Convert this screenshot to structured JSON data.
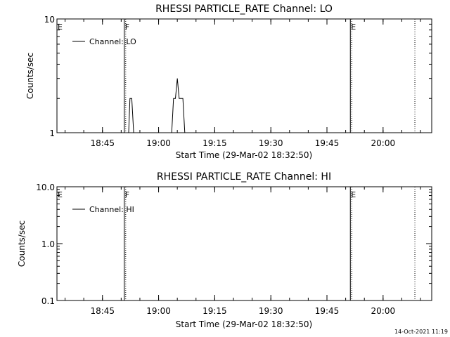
{
  "footer": {
    "timestamp": "14-Oct-2021 11:19"
  },
  "chart_data": [
    {
      "type": "line",
      "title": "RHESSI PARTICLE_RATE Channel: LO",
      "xlabel": "Start Time (29-Mar-02 18:32:50)",
      "ylabel": "Counts/sec",
      "yscale": "log",
      "ylim": [
        1,
        10
      ],
      "ytick_labels": [
        "1",
        "10"
      ],
      "xlim": [
        "18:32:50",
        "20:13:00"
      ],
      "xtick_labels": [
        "18:45",
        "19:00",
        "19:15",
        "19:30",
        "19:45",
        "20:00"
      ],
      "legend": {
        "placement": "top-left",
        "entries": [
          "Channel: LO"
        ]
      },
      "markers": [
        {
          "label": "E",
          "time": "18:32:50",
          "style": "none"
        },
        {
          "label": "F",
          "time": "18:50:50",
          "style": "solid+dotted"
        },
        {
          "label": "E",
          "time": "19:51:15",
          "style": "solid+dotted"
        },
        {
          "label": "",
          "time": "20:08:30",
          "style": "dotted"
        }
      ],
      "series": [
        {
          "name": "Channel: LO",
          "x": [
            "18:51:00",
            "18:52:00",
            "18:52:20",
            "18:52:50",
            "18:53:20",
            "18:53:30",
            "19:03:30",
            "19:04:00",
            "19:04:30",
            "19:05:00",
            "19:05:30",
            "19:06:00",
            "19:06:30",
            "19:07:00",
            "19:07:30"
          ],
          "y": [
            1,
            1,
            2,
            2,
            1,
            1,
            1,
            2,
            2,
            3,
            2,
            2,
            2,
            1,
            1
          ]
        }
      ]
    },
    {
      "type": "line",
      "title": "RHESSI PARTICLE_RATE Channel: HI",
      "xlabel": "Start Time (29-Mar-02 18:32:50)",
      "ylabel": "Counts/sec",
      "yscale": "log",
      "ylim": [
        0.1,
        10
      ],
      "ytick_labels": [
        "0.1",
        "1.0",
        "10.0"
      ],
      "xlim": [
        "18:32:50",
        "20:13:00"
      ],
      "xtick_labels": [
        "18:45",
        "19:00",
        "19:15",
        "19:30",
        "19:45",
        "20:00"
      ],
      "legend": {
        "placement": "top-left",
        "entries": [
          "Channel: HI"
        ]
      },
      "markers": [
        {
          "label": "E",
          "time": "18:32:50",
          "style": "none"
        },
        {
          "label": "F",
          "time": "18:50:50",
          "style": "solid+dotted"
        },
        {
          "label": "E",
          "time": "19:51:15",
          "style": "solid+dotted"
        },
        {
          "label": "",
          "time": "20:08:30",
          "style": "dotted"
        }
      ],
      "series": [
        {
          "name": "Channel: HI",
          "x": [],
          "y": []
        }
      ]
    }
  ]
}
